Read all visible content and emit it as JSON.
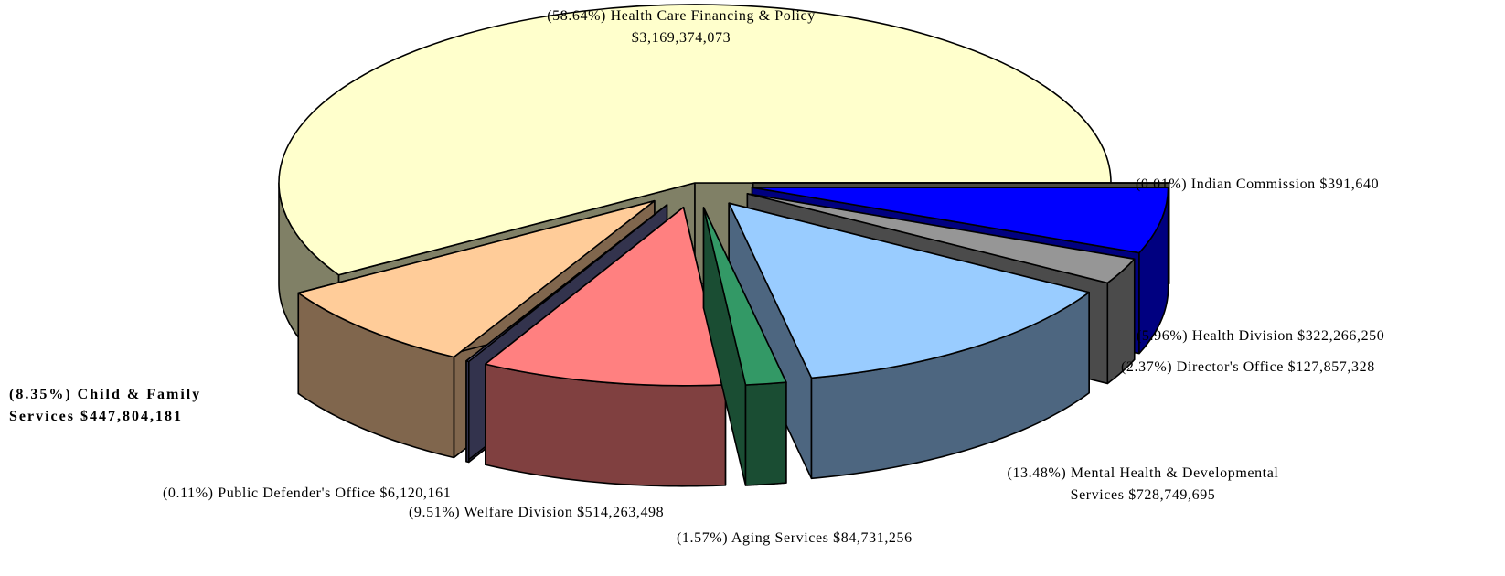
{
  "chart_data": {
    "type": "pie",
    "explode": true,
    "categories": [
      "Indian Commission",
      "Health Division",
      "Director's Office",
      "Mental Health & Developmental Services",
      "Aging Services",
      "Welfare Division",
      "Public Defender's Office",
      "Child & Family Services",
      "Health Care Financing & Policy"
    ],
    "values": [
      0.01,
      5.96,
      2.37,
      13.48,
      1.57,
      9.51,
      0.11,
      8.35,
      58.64
    ],
    "value_labels": [
      "(0.01%)",
      "(5.96%)",
      "(2.37%)",
      "(13.48%)",
      "(1.57%)",
      "(9.51%)",
      "(0.11%)",
      "(8.35%)",
      "(58.64%)"
    ],
    "amounts": [
      391640,
      322266250,
      127857328,
      728749695,
      84731256,
      514263498,
      6120161,
      447804181,
      3169374073
    ],
    "amount_labels": [
      "$391,640",
      "$322,266,250",
      "$127,857,328",
      "$728,749,695",
      "$84,731,256",
      "$514,263,498",
      "$6,120,161",
      "$447,804,181",
      "$3,169,374,073"
    ],
    "colors": [
      "#9c9c80",
      "#0000ff",
      "#969696",
      "#99ccff",
      "#339966",
      "#ff8080",
      "#666699",
      "#ffcc99",
      "#ffffcc"
    ]
  }
}
